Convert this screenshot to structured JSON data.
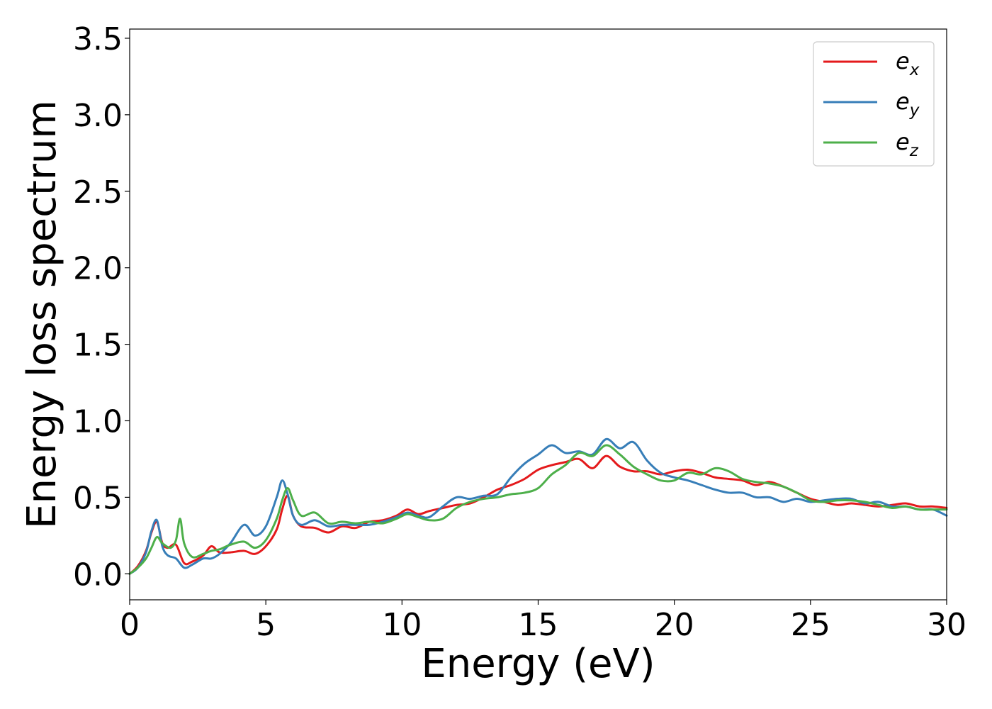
{
  "chart_data": {
    "type": "line",
    "xlabel": "Energy (eV)",
    "ylabel": "Energy loss spectrum",
    "xlim": [
      0,
      30
    ],
    "ylim": [
      -0.17,
      3.56
    ],
    "xticks": [
      0,
      5,
      10,
      15,
      20,
      25,
      30
    ],
    "xtick_labels": [
      "0",
      "5",
      "10",
      "15",
      "20",
      "25",
      "30"
    ],
    "yticks": [
      0.0,
      0.5,
      1.0,
      1.5,
      2.0,
      2.5,
      3.0,
      3.5
    ],
    "ytick_labels": [
      "0.0",
      "0.5",
      "1.0",
      "1.5",
      "2.0",
      "2.5",
      "3.0",
      "3.5"
    ],
    "grid": false,
    "legend_position": "top-right",
    "series": [
      {
        "name": "e",
        "subscript": "x",
        "color": "#e41a1c",
        "x": [
          0,
          0.3,
          0.6,
          0.8,
          1.0,
          1.2,
          1.4,
          1.7,
          2.0,
          2.3,
          2.7,
          3.0,
          3.3,
          3.7,
          4.2,
          4.6,
          5.0,
          5.4,
          5.6,
          5.8,
          6.0,
          6.3,
          6.8,
          7.3,
          7.8,
          8.3,
          8.8,
          9.3,
          9.8,
          10.2,
          10.6,
          11.0,
          11.5,
          12.0,
          12.5,
          13.0,
          13.5,
          14.0,
          14.5,
          15.0,
          15.5,
          16.0,
          16.5,
          17.0,
          17.5,
          18.0,
          18.5,
          19.0,
          19.5,
          20.0,
          20.5,
          21.0,
          21.5,
          22.0,
          22.5,
          23.0,
          23.5,
          24.0,
          24.5,
          25.0,
          25.5,
          26.0,
          26.5,
          27.0,
          27.5,
          28.0,
          28.5,
          29.0,
          29.5,
          30.0
        ],
        "y": [
          0.0,
          0.05,
          0.15,
          0.27,
          0.34,
          0.2,
          0.17,
          0.19,
          0.07,
          0.08,
          0.12,
          0.18,
          0.14,
          0.14,
          0.15,
          0.13,
          0.18,
          0.29,
          0.42,
          0.51,
          0.38,
          0.31,
          0.3,
          0.27,
          0.31,
          0.3,
          0.34,
          0.35,
          0.38,
          0.42,
          0.39,
          0.41,
          0.43,
          0.45,
          0.46,
          0.5,
          0.55,
          0.58,
          0.62,
          0.68,
          0.71,
          0.73,
          0.75,
          0.69,
          0.77,
          0.7,
          0.67,
          0.67,
          0.65,
          0.67,
          0.68,
          0.66,
          0.63,
          0.62,
          0.61,
          0.58,
          0.6,
          0.57,
          0.53,
          0.49,
          0.47,
          0.45,
          0.46,
          0.45,
          0.44,
          0.45,
          0.46,
          0.44,
          0.44,
          0.43
        ]
      },
      {
        "name": "e",
        "subscript": "y",
        "color": "#377eb8",
        "x": [
          0,
          0.3,
          0.6,
          0.8,
          1.0,
          1.2,
          1.4,
          1.7,
          2.0,
          2.3,
          2.7,
          3.0,
          3.3,
          3.7,
          4.2,
          4.6,
          5.0,
          5.4,
          5.6,
          5.8,
          6.0,
          6.3,
          6.8,
          7.3,
          7.8,
          8.3,
          8.8,
          9.3,
          9.8,
          10.2,
          10.6,
          11.0,
          11.5,
          12.0,
          12.5,
          13.0,
          13.5,
          14.0,
          14.5,
          15.0,
          15.5,
          16.0,
          16.5,
          17.0,
          17.5,
          18.0,
          18.5,
          19.0,
          19.5,
          20.0,
          20.5,
          21.0,
          21.5,
          22.0,
          22.5,
          23.0,
          23.5,
          24.0,
          24.5,
          25.0,
          25.5,
          26.0,
          26.5,
          27.0,
          27.5,
          28.0,
          28.5,
          29.0,
          29.5,
          30.0
        ],
        "y": [
          0.0,
          0.04,
          0.14,
          0.28,
          0.35,
          0.18,
          0.12,
          0.1,
          0.04,
          0.06,
          0.1,
          0.1,
          0.13,
          0.2,
          0.32,
          0.25,
          0.31,
          0.5,
          0.61,
          0.52,
          0.38,
          0.32,
          0.35,
          0.31,
          0.32,
          0.32,
          0.32,
          0.34,
          0.37,
          0.4,
          0.38,
          0.37,
          0.44,
          0.5,
          0.49,
          0.51,
          0.52,
          0.63,
          0.72,
          0.78,
          0.84,
          0.79,
          0.8,
          0.78,
          0.88,
          0.82,
          0.86,
          0.74,
          0.66,
          0.63,
          0.61,
          0.58,
          0.55,
          0.53,
          0.53,
          0.5,
          0.5,
          0.47,
          0.49,
          0.47,
          0.48,
          0.49,
          0.49,
          0.46,
          0.47,
          0.44,
          0.44,
          0.42,
          0.42,
          0.38
        ]
      },
      {
        "name": "e",
        "subscript": "z",
        "color": "#4daf4a",
        "x": [
          0,
          0.3,
          0.6,
          0.8,
          1.0,
          1.2,
          1.5,
          1.7,
          1.85,
          2.0,
          2.3,
          2.7,
          3.0,
          3.3,
          3.7,
          4.2,
          4.6,
          5.0,
          5.4,
          5.6,
          5.8,
          6.0,
          6.3,
          6.8,
          7.3,
          7.8,
          8.3,
          8.8,
          9.3,
          9.8,
          10.2,
          10.6,
          11.0,
          11.5,
          12.0,
          12.5,
          13.0,
          13.5,
          14.0,
          14.5,
          15.0,
          15.5,
          16.0,
          16.5,
          17.0,
          17.5,
          18.0,
          18.5,
          19.0,
          19.5,
          20.0,
          20.5,
          21.0,
          21.5,
          22.0,
          22.5,
          23.0,
          23.5,
          24.0,
          24.5,
          25.0,
          25.5,
          26.0,
          26.5,
          27.0,
          27.5,
          28.0,
          28.5,
          29.0,
          29.5,
          30.0
        ],
        "y": [
          0.0,
          0.04,
          0.1,
          0.17,
          0.24,
          0.2,
          0.17,
          0.22,
          0.36,
          0.2,
          0.11,
          0.13,
          0.15,
          0.16,
          0.19,
          0.21,
          0.17,
          0.22,
          0.36,
          0.48,
          0.56,
          0.48,
          0.38,
          0.4,
          0.33,
          0.34,
          0.33,
          0.34,
          0.33,
          0.36,
          0.39,
          0.37,
          0.35,
          0.36,
          0.43,
          0.47,
          0.49,
          0.5,
          0.52,
          0.53,
          0.56,
          0.65,
          0.71,
          0.79,
          0.77,
          0.84,
          0.78,
          0.7,
          0.65,
          0.61,
          0.61,
          0.66,
          0.65,
          0.69,
          0.67,
          0.62,
          0.6,
          0.59,
          0.57,
          0.53,
          0.48,
          0.47,
          0.48,
          0.48,
          0.47,
          0.45,
          0.43,
          0.44,
          0.42,
          0.42,
          0.42
        ]
      }
    ]
  }
}
